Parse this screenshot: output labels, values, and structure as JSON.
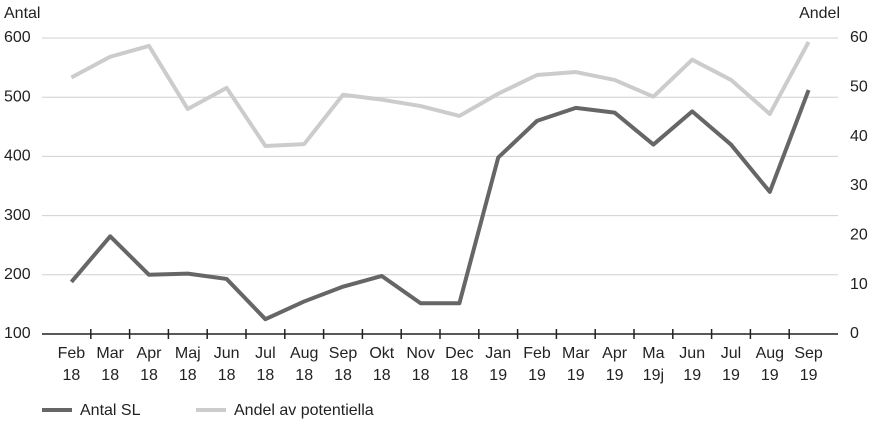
{
  "chart_data": {
    "type": "line",
    "y_label": "Antal",
    "y2_label": "Andel",
    "categories": [
      [
        "Feb",
        "18"
      ],
      [
        "Mar",
        "18"
      ],
      [
        "Apr",
        "18"
      ],
      [
        "Maj",
        "18"
      ],
      [
        "Jun",
        "18"
      ],
      [
        "Jul",
        "18"
      ],
      [
        "Aug",
        "18"
      ],
      [
        "Sep",
        "18"
      ],
      [
        "Okt",
        "18"
      ],
      [
        "Nov",
        "18"
      ],
      [
        "Dec",
        "18"
      ],
      [
        "Jan",
        "19"
      ],
      [
        "Feb",
        "19"
      ],
      [
        "Mar",
        "19"
      ],
      [
        "Apr",
        "19"
      ],
      [
        "Ma",
        "19j"
      ],
      [
        "Jun",
        "19"
      ],
      [
        "Jul",
        "19"
      ],
      [
        "Aug",
        "19"
      ],
      [
        "Sep",
        "19"
      ]
    ],
    "series": [
      {
        "name": "Antal SL",
        "color": "#666666",
        "values": [
          188,
          265,
          200,
          202,
          193,
          125,
          155,
          180,
          198,
          152,
          152,
          398,
          460,
          482,
          474,
          420,
          476,
          420,
          340,
          512
        ]
      },
      {
        "name": "Andel av potentiella",
        "color": "#cccccc",
        "axis": "y2",
        "values": [
          52,
          56.2,
          58.4,
          45.6,
          49.9,
          38.1,
          38.5,
          48.5,
          47.5,
          46.2,
          44.2,
          48.7,
          52.5,
          53.1,
          51.5,
          48.1,
          55.6,
          51.5,
          44.6,
          59.2
        ]
      }
    ],
    "ylim": [
      100,
      600
    ],
    "yticks": [
      100,
      200,
      300,
      400,
      500,
      600
    ],
    "y2lim": [
      0,
      60
    ],
    "y2ticks": [
      0,
      10,
      20,
      30,
      40,
      50,
      60
    ],
    "grid": true
  }
}
